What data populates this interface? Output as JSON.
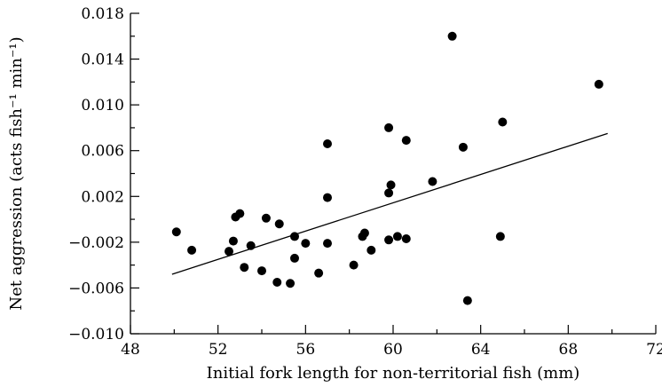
{
  "chart_data": {
    "type": "scatter",
    "title": "",
    "xlabel": "Initial fork length for non-territorial fish (mm)",
    "ylabel": "Net aggression (acts fish⁻¹ min⁻¹)",
    "xlim": [
      48,
      72
    ],
    "ylim": [
      -0.01,
      0.018
    ],
    "x_ticks": [
      48,
      52,
      56,
      60,
      64,
      68,
      72
    ],
    "x_tick_labels": [
      "48",
      "52",
      "56",
      "60",
      "64",
      "68",
      "72"
    ],
    "y_ticks": [
      -0.01,
      -0.006,
      -0.002,
      0.002,
      0.006,
      0.01,
      0.014,
      0.018
    ],
    "y_tick_labels": [
      "−0.010",
      "−0.006",
      "−0.002",
      "0.002",
      "0.006",
      "0.010",
      "0.014",
      "0.018"
    ],
    "grid": false,
    "legend": "none",
    "series": [
      {
        "marker": "filled-circle",
        "points": [
          [
            50.1,
            -0.0011
          ],
          [
            50.8,
            -0.0027
          ],
          [
            52.5,
            -0.0028
          ],
          [
            52.7,
            -0.0019
          ],
          [
            52.8,
            0.0002
          ],
          [
            53.0,
            0.0005
          ],
          [
            53.2,
            -0.0042
          ],
          [
            53.5,
            -0.0023
          ],
          [
            54.0,
            -0.0045
          ],
          [
            54.2,
            0.0001
          ],
          [
            54.7,
            -0.0055
          ],
          [
            54.8,
            -0.0004
          ],
          [
            55.3,
            -0.0056
          ],
          [
            55.5,
            -0.0034
          ],
          [
            55.5,
            -0.0015
          ],
          [
            56.0,
            -0.0021
          ],
          [
            56.6,
            -0.0047
          ],
          [
            57.0,
            0.0019
          ],
          [
            57.0,
            0.0066
          ],
          [
            57.0,
            -0.0021
          ],
          [
            58.2,
            -0.004
          ],
          [
            58.6,
            -0.0015
          ],
          [
            58.7,
            -0.0012
          ],
          [
            59.0,
            -0.0027
          ],
          [
            59.8,
            0.008
          ],
          [
            59.8,
            0.0023
          ],
          [
            59.8,
            -0.0018
          ],
          [
            59.9,
            0.003
          ],
          [
            60.2,
            -0.0015
          ],
          [
            60.6,
            0.0069
          ],
          [
            60.6,
            -0.0017
          ],
          [
            61.8,
            0.0033
          ],
          [
            62.7,
            0.016
          ],
          [
            63.2,
            0.0063
          ],
          [
            63.4,
            -0.0071
          ],
          [
            64.9,
            -0.0015
          ],
          [
            65.0,
            0.0085
          ],
          [
            69.4,
            0.0118
          ]
        ]
      }
    ],
    "trendline": {
      "x": [
        49.9,
        69.8
      ],
      "y": [
        -0.0048,
        0.0075
      ]
    }
  }
}
